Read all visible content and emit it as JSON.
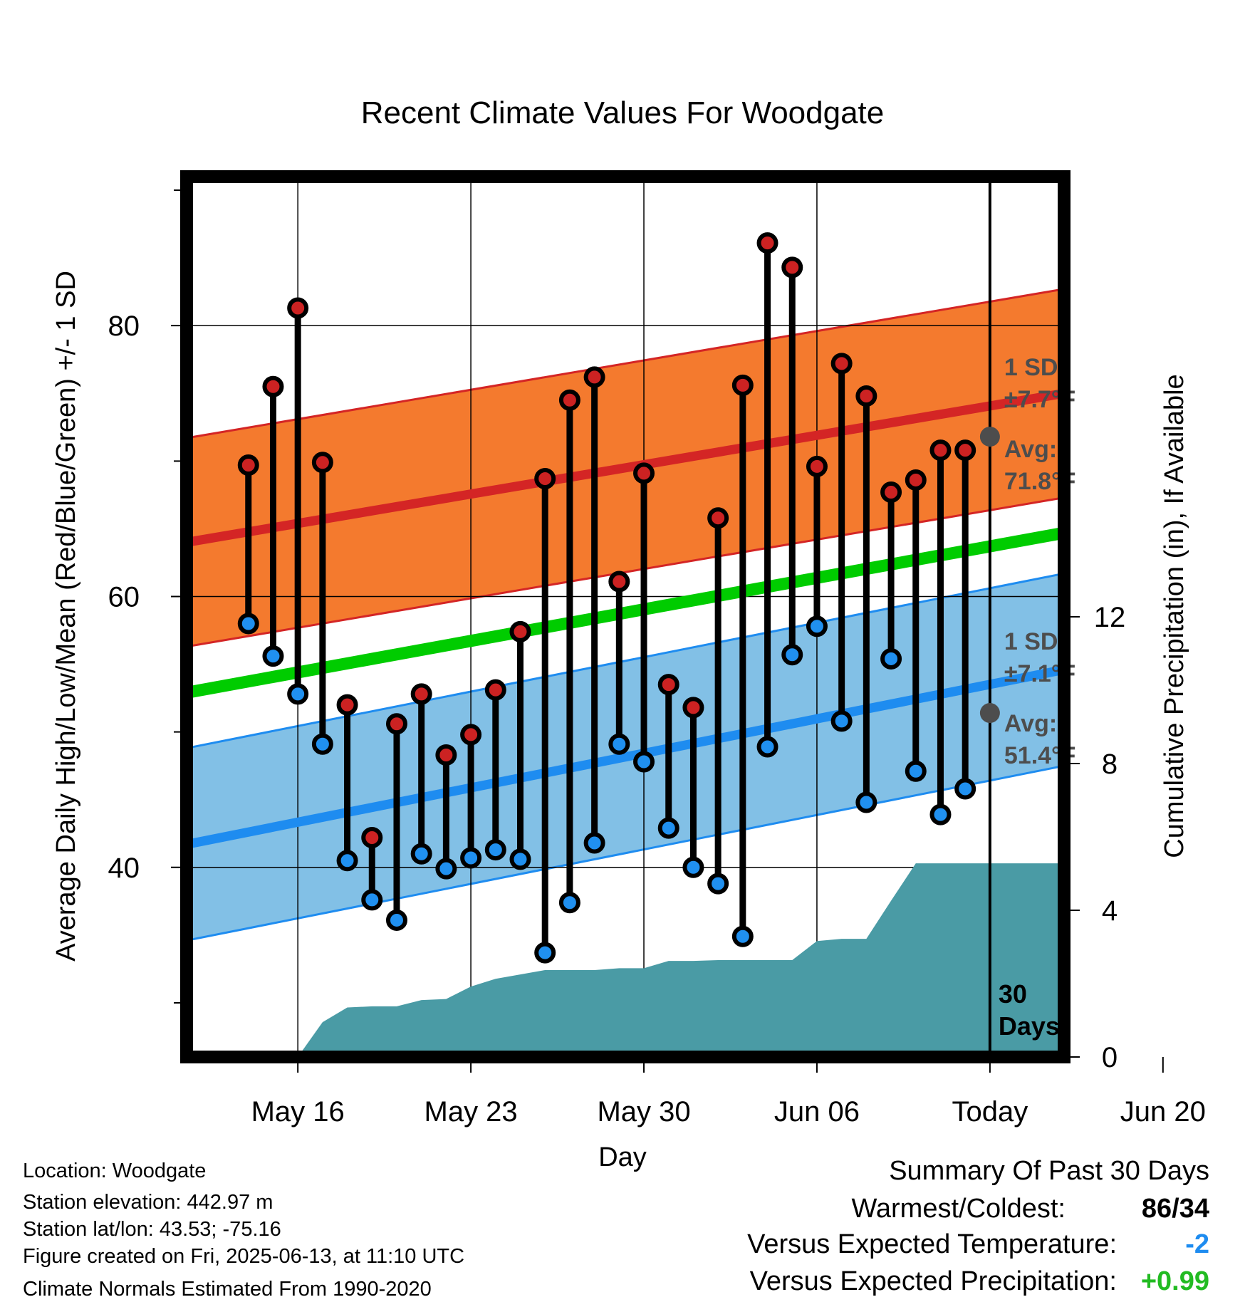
{
  "chart_data": {
    "type": "line",
    "title": "Recent Climate Values For Woodgate",
    "xlabel": "Day",
    "ylabel": "Average Daily High/Low/Mean (Red/Blue/Green) +/- 1 SD",
    "y2label": "Cumulative Precipitation (in), If Available",
    "ylim": [
      26,
      91
    ],
    "y2lim": [
      0,
      24
    ],
    "xlim": [
      -4.5,
      31
    ],
    "x_ticks": [
      {
        "x": 0,
        "label": "May 16"
      },
      {
        "x": 7,
        "label": "May 23"
      },
      {
        "x": 14,
        "label": "May 30"
      },
      {
        "x": 21,
        "label": "Jun 06"
      },
      {
        "x": 28,
        "label": "Today"
      },
      {
        "x": 35,
        "label": "Jun 20"
      }
    ],
    "y_ticks": [
      40,
      60,
      80
    ],
    "y_minor_ticks": [
      30,
      50,
      70,
      90
    ],
    "y2_ticks": [
      0,
      4,
      8,
      12
    ],
    "grid": true,
    "today_x": 28,
    "days_label": [
      "30",
      "Days"
    ],
    "normals": {
      "x": [
        -4.5,
        31
      ],
      "high_mean": [
        64.0,
        75.0
      ],
      "high_sd": 7.7,
      "low_mean": [
        41.7,
        54.6
      ],
      "low_sd": 7.1,
      "mean": [
        52.9,
        64.7
      ]
    },
    "annotations": {
      "high_sd": [
        "1 SD:",
        "±7.7°F"
      ],
      "high_avg": [
        "Avg:",
        "71.8°F"
      ],
      "low_sd": [
        "1 SD:",
        "±7.1°F"
      ],
      "low_avg": [
        "Avg:",
        "51.4°F"
      ],
      "today_high": 71.8,
      "today_low": 51.4
    },
    "series": [
      {
        "name": "High",
        "x": [
          -2,
          -1,
          0,
          1,
          2,
          3,
          4,
          5,
          6,
          7,
          8,
          9,
          10,
          11,
          12,
          13,
          14,
          15,
          16,
          17,
          18,
          19,
          20,
          21,
          22,
          23,
          24,
          25,
          26,
          27
        ],
        "values": [
          69.7,
          75.5,
          81.3,
          69.9,
          52.0,
          42.2,
          50.6,
          52.8,
          48.3,
          49.8,
          53.1,
          57.4,
          68.7,
          74.5,
          76.2,
          61.1,
          69.1,
          53.5,
          51.8,
          65.8,
          75.6,
          86.1,
          84.3,
          69.6,
          77.2,
          74.8,
          67.7,
          68.6,
          70.8,
          70.8
        ]
      },
      {
        "name": "Low",
        "x": [
          -2,
          -1,
          0,
          1,
          2,
          3,
          4,
          5,
          6,
          7,
          8,
          9,
          10,
          11,
          12,
          13,
          14,
          15,
          16,
          17,
          18,
          19,
          20,
          21,
          22,
          23,
          24,
          25,
          26,
          27
        ],
        "values": [
          58.0,
          55.6,
          52.8,
          49.1,
          40.5,
          37.6,
          36.1,
          41.0,
          39.9,
          40.7,
          41.3,
          40.6,
          33.7,
          37.4,
          41.8,
          49.1,
          47.8,
          42.9,
          40.0,
          38.8,
          34.9,
          48.9,
          55.7,
          57.8,
          50.8,
          44.8,
          55.4,
          47.1,
          43.9,
          45.8
        ]
      },
      {
        "name": "Cumulative Precipitation",
        "x": [
          0,
          1,
          2,
          3,
          4,
          5,
          6,
          7,
          8,
          9,
          10,
          11,
          12,
          13,
          14,
          15,
          16,
          17,
          18,
          19,
          20,
          21,
          22,
          23,
          24,
          25,
          26,
          27,
          28,
          29,
          30,
          31
        ],
        "values": [
          0.0,
          0.95,
          1.35,
          1.38,
          1.38,
          1.55,
          1.58,
          1.92,
          2.13,
          2.25,
          2.37,
          2.37,
          2.37,
          2.42,
          2.42,
          2.62,
          2.62,
          2.64,
          2.64,
          2.64,
          2.64,
          3.16,
          3.22,
          3.22,
          4.26,
          5.28,
          5.28,
          5.28,
          5.28,
          5.28,
          5.28,
          5.28
        ]
      }
    ]
  },
  "info": {
    "location": "Location: Woodgate",
    "elevation": "Station elevation: 442.97 m",
    "latlon": "Station lat/lon: 43.53; -75.16",
    "created": "Figure created on Fri, 2025-06-13, at 11:10 UTC",
    "normals": "Climate Normals Estimated From 1990-2020"
  },
  "summary": {
    "title": "Summary Of Past 30 Days",
    "warm_cold_label": "Warmest/Coldest:",
    "warmest": "86",
    "slash": "/",
    "coldest": "34",
    "temp_label": "Versus Expected Temperature:",
    "temp_value": "-2",
    "precip_label": "Versus Expected Precipitation:",
    "precip_value": "+0.99"
  },
  "colors": {
    "high_band": "#f47a2e",
    "high_line": "#d42525",
    "low_band": "#82c0e6",
    "low_line": "#1e8cf0",
    "mean_line": "#00cc00",
    "precip": "#4a9ba5",
    "high_dot": "#cc2222",
    "low_dot": "#2090f0",
    "annot": "#4d4d4d",
    "temp_value": "#1e8cf0",
    "precip_value": "#22bb22"
  }
}
